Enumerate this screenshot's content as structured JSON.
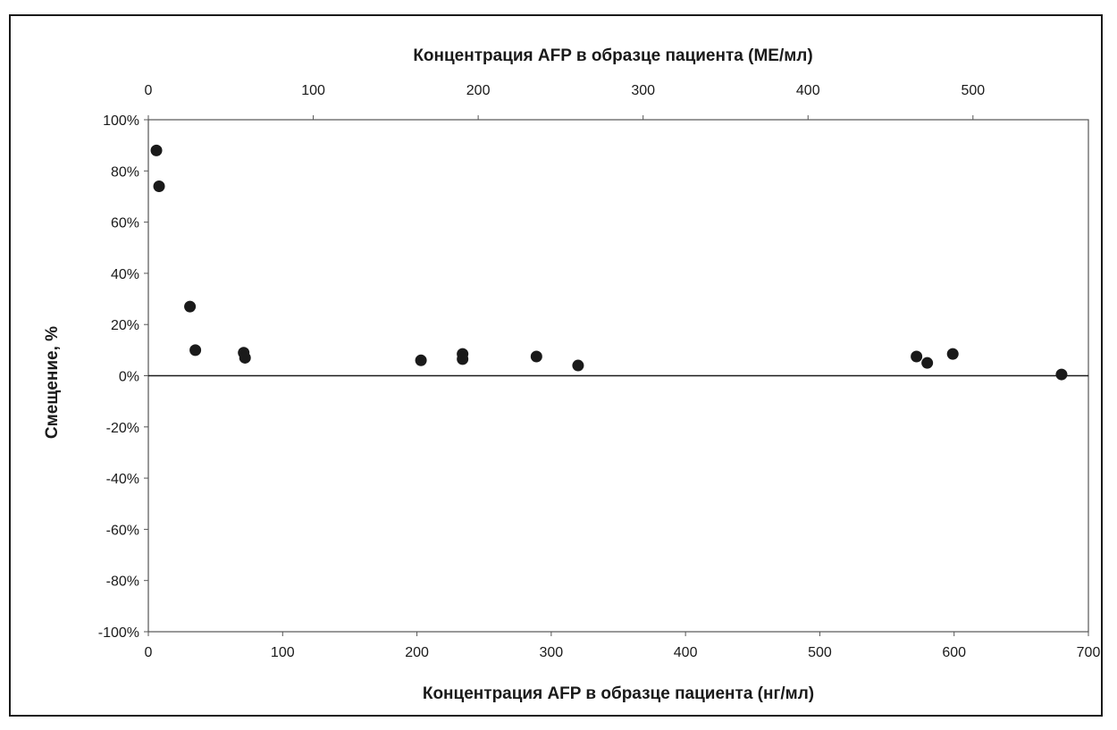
{
  "chart_data": {
    "type": "scatter",
    "top_axis_title": "Концентрация AFP в образце пациента (МЕ/мл)",
    "xlabel": "Концентрация AFP в образце пациента (нг/мл)",
    "ylabel": "Смещение, %",
    "xlim": [
      0,
      700
    ],
    "ylim": [
      -100,
      100
    ],
    "top_xlim": [
      0,
      570
    ],
    "x_ticks": [
      "0",
      "100",
      "200",
      "300",
      "400",
      "500",
      "600",
      "700"
    ],
    "top_x_ticks": [
      "0",
      "100",
      "200",
      "300",
      "400",
      "500"
    ],
    "y_ticks": [
      "100%",
      "80%",
      "60%",
      "40%",
      "20%",
      "0%",
      "-20%",
      "-40%",
      "-60%",
      "-80%",
      "-100%"
    ],
    "grid": false,
    "legend": "none",
    "marker_color": "#1a1a1a",
    "points": [
      {
        "x": 6,
        "y": 88
      },
      {
        "x": 8,
        "y": 74
      },
      {
        "x": 31,
        "y": 27
      },
      {
        "x": 35,
        "y": 10
      },
      {
        "x": 71,
        "y": 9
      },
      {
        "x": 72,
        "y": 7
      },
      {
        "x": 203,
        "y": 6
      },
      {
        "x": 234,
        "y": 8.5
      },
      {
        "x": 234,
        "y": 6.5
      },
      {
        "x": 289,
        "y": 7.5
      },
      {
        "x": 320,
        "y": 4
      },
      {
        "x": 572,
        "y": 7.5
      },
      {
        "x": 580,
        "y": 5
      },
      {
        "x": 599,
        "y": 8.5
      },
      {
        "x": 680,
        "y": 0.5
      }
    ]
  }
}
